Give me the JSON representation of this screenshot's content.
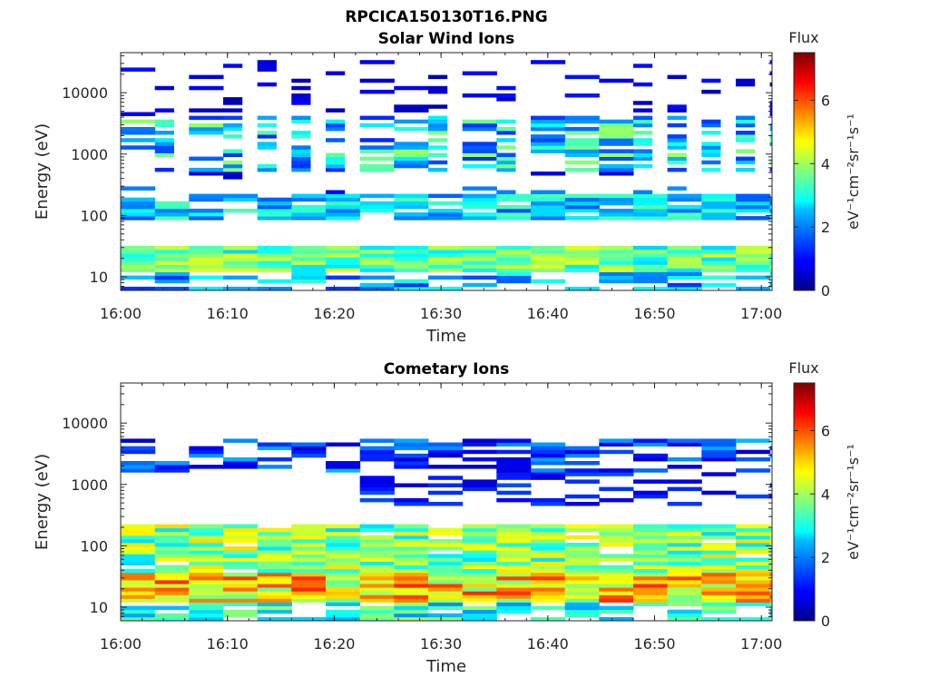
{
  "figure_title": "RPCICA150130T16.PNG",
  "chart_data": [
    {
      "type": "heatmap",
      "title": "Solar Wind Ions",
      "xlabel": "Time",
      "ylabel": "Energy (eV)",
      "x_range": [
        "16:00",
        "17:01"
      ],
      "x_ticks": [
        "16:00",
        "16:10",
        "16:20",
        "16:30",
        "16:40",
        "16:50",
        "17:00"
      ],
      "y_scale": "log",
      "y_range": [
        6,
        45000
      ],
      "y_ticks": [
        "10",
        "100",
        "1000",
        "10000"
      ],
      "colorbar": {
        "title": "Flux",
        "label": "eV⁻¹cm⁻²sr⁻¹s⁻¹",
        "range": [
          0,
          7.5
        ],
        "ticks": [
          "0",
          "2",
          "4",
          "6"
        ],
        "colormap": "jet"
      },
      "grid": false,
      "time_step_s": 192,
      "scan_times_min": [
        0.9,
        2.6,
        4.8,
        7.5,
        9,
        11.9,
        14.5,
        17.5,
        19.5,
        21.9,
        24.8,
        28.1,
        30.1,
        31.8,
        33.7,
        37.2,
        39.5,
        40.8,
        44.4,
        46.5,
        48.9,
        51,
        54,
        57,
        60
      ],
      "description": "Solar wind protons in the 80-200 eV band with flux 2-3.5, low-energy band 12-30 eV with flux 2.5-4.5, and weaker bands between 500 and 4000 eV (flux 1.5-3.5)."
    },
    {
      "type": "heatmap",
      "title": "Cometary Ions",
      "xlabel": "Time",
      "ylabel": "Energy (eV)",
      "x_range": [
        "16:00",
        "17:01"
      ],
      "x_ticks": [
        "16:00",
        "16:10",
        "16:20",
        "16:30",
        "16:40",
        "16:50",
        "17:00"
      ],
      "y_scale": "log",
      "y_range": [
        6,
        45000
      ],
      "y_ticks": [
        "10",
        "100",
        "1000",
        "10000"
      ],
      "colorbar": {
        "title": "Flux",
        "label": "eV⁻¹cm⁻²sr⁻¹s⁻¹",
        "range": [
          0,
          7.5
        ],
        "ticks": [
          "0",
          "2",
          "4",
          "6"
        ],
        "colormap": "jet"
      },
      "grid": false,
      "time_step_s": 192,
      "description": "Dense cometary ion band 10-200 eV with flux 3-6 peaking near 20-30 eV, sparse high-energy bands 1000-5000 eV (flux 0.5-2)."
    }
  ]
}
